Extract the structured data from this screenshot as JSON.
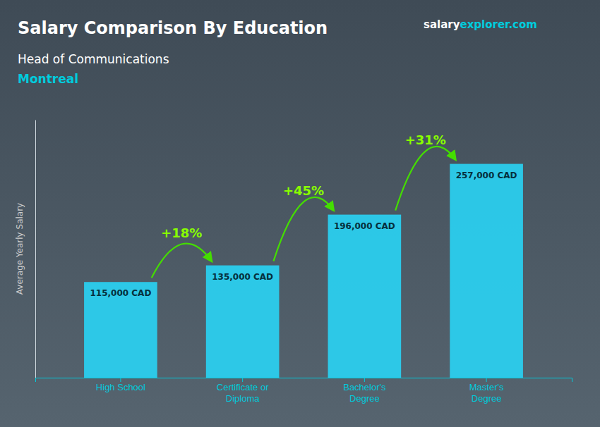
{
  "chart_data": {
    "type": "bar",
    "title": "Salary Comparison By Education",
    "subtitle": [
      "Head of Communications",
      "Montreal"
    ],
    "watermark": [
      "salary",
      "explorer",
      ".com"
    ],
    "ylabel": "Average Yearly Salary",
    "categories": [
      "High School",
      "Certificate or\nDiploma",
      "Bachelor's\nDegree",
      "Master's\nDegree"
    ],
    "values": [
      115000,
      135000,
      196000,
      257000
    ],
    "value_labels": [
      "115,000 CAD",
      "135,000 CAD",
      "196,000 CAD",
      "257,000 CAD"
    ],
    "data_labels": true,
    "annotations": [
      "+18%",
      "+45%",
      "+31%"
    ],
    "color": "#29d4f5",
    "ylim": [
      0,
      310000
    ],
    "grid": false,
    "tick_labels": "x"
  }
}
